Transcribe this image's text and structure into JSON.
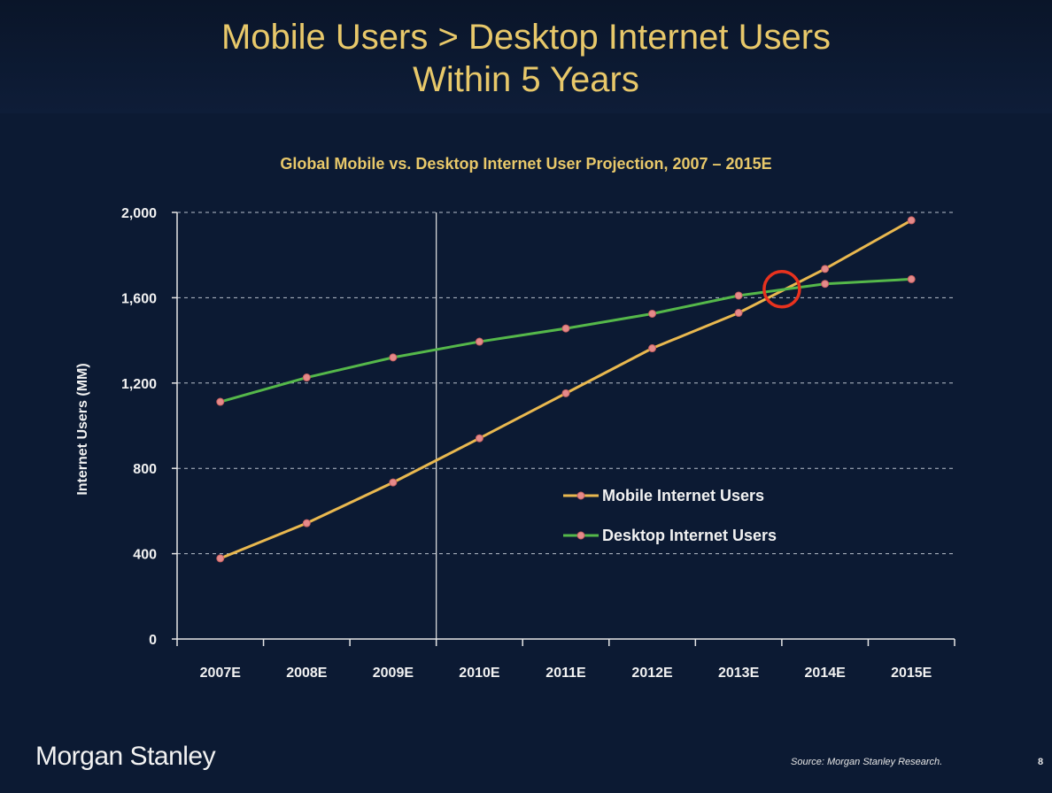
{
  "header": {
    "title_line1": "Mobile Users > Desktop Internet Users",
    "title_line2": "Within 5 Years"
  },
  "chart_data": {
    "type": "line",
    "title": "Global Mobile vs. Desktop Internet User Projection, 2007 – 2015E",
    "xlabel": "",
    "ylabel": "Internet Users (MM)",
    "categories": [
      "2007E",
      "2008E",
      "2009E",
      "2010E",
      "2011E",
      "2012E",
      "2013E",
      "2014E",
      "2015E"
    ],
    "ylim": [
      0,
      2000
    ],
    "yticks": [
      0,
      400,
      800,
      1200,
      1600,
      2000
    ],
    "ytick_labels": [
      "0",
      "400",
      "800",
      "1,200",
      "1,600",
      "2,000"
    ],
    "grid": true,
    "legend_placement": "center-right",
    "series": [
      {
        "name": "Mobile Internet Users",
        "color": "#e9b84f",
        "values": [
          378,
          543,
          734,
          941,
          1152,
          1363,
          1529,
          1735,
          1963
        ]
      },
      {
        "name": "Desktop Internet Users",
        "color": "#55b84a",
        "values": [
          1112,
          1226,
          1320,
          1394,
          1456,
          1525,
          1610,
          1665,
          1687
        ]
      }
    ],
    "annotations": [
      {
        "type": "vertical-line",
        "between": [
          "2009E",
          "2010E"
        ],
        "color": "#e6e6e6"
      },
      {
        "type": "circle-highlight",
        "x_between": [
          "2013E",
          "2014E"
        ],
        "y": 1640,
        "color": "#e8321e"
      }
    ]
  },
  "footer": {
    "logo_text": "Morgan Stanley",
    "source": "Source: Morgan Stanley Research.",
    "page_number": "8"
  }
}
